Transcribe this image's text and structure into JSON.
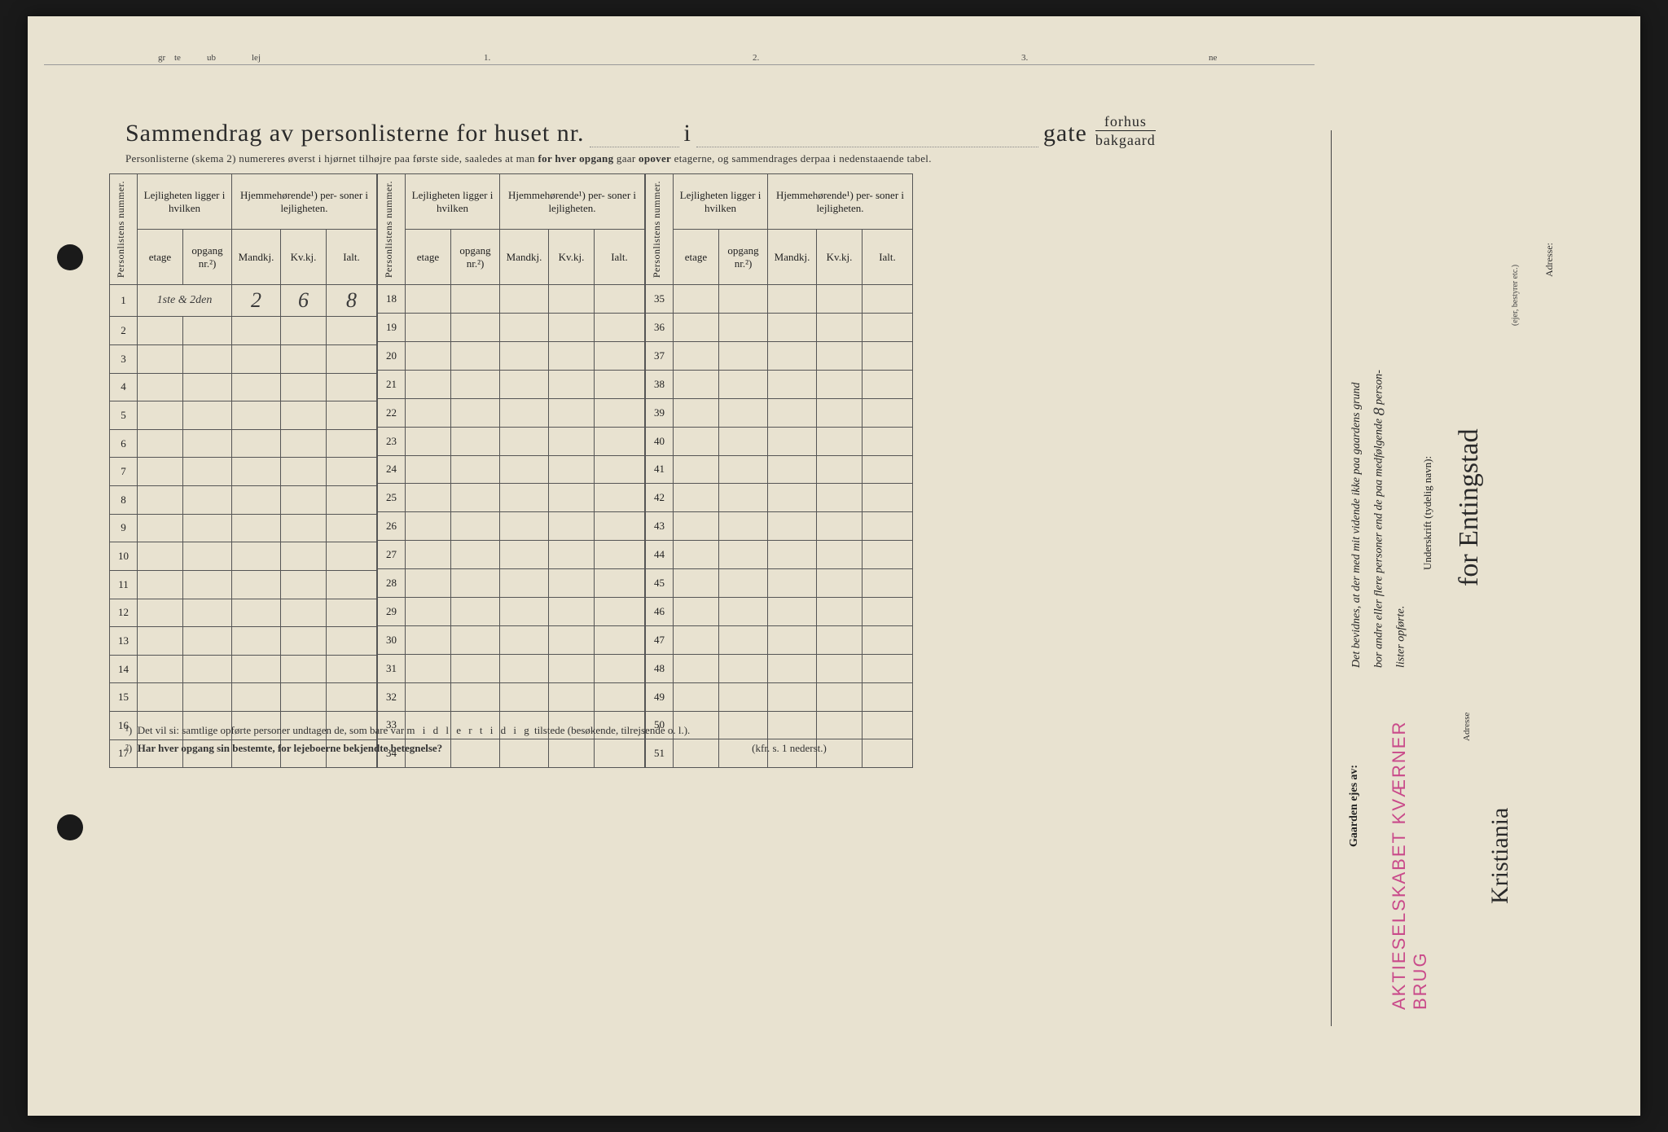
{
  "page": {
    "background_color": "#e8e2d0",
    "ink_color": "#2a2a2a",
    "stamp_color": "#c94a8a",
    "border_color": "#555555"
  },
  "top_fragment": {
    "labels": [
      "gr",
      "te",
      "ub",
      "lej",
      "1.",
      "2.",
      "3.",
      "ne"
    ]
  },
  "header": {
    "title_pre": "Sammendrag av personlisterne for huset nr.",
    "title_i": "i",
    "title_gate": "gate",
    "fraction_top": "forhus",
    "fraction_bottom": "bakgaard",
    "subtitle": "Personlisterne (skema 2) numereres øverst i hjørnet tilhøjre paa første side, saaledes at man for hver opgang gaar opover etagerne, og sammendrages derpaa i nedenstaaende tabel.",
    "subtitle_bold_1": "for hver opgang",
    "subtitle_bold_2": "opover"
  },
  "table": {
    "col_personlistens": "Personlistens\nnummer.",
    "group_lejlighet": "Lejligheten\nligger i hvilken",
    "group_hjemme": "Hjemmehørende¹) per-\nsoner i lejligheten.",
    "col_etage": "etage",
    "col_opgang": "opgang\nnr.²)",
    "col_mandkj": "Mandkj.",
    "col_kvkj": "Kv.kj.",
    "col_ialt": "Ialt.",
    "block1_start": 1,
    "block1_end": 17,
    "block2_start": 18,
    "block2_end": 34,
    "block3_start": 35,
    "block3_end": 51,
    "row1": {
      "num": "1",
      "etage": "1ste & 2den",
      "opgang": "",
      "mandkj": "2",
      "kvkj": "6",
      "ialt": "8"
    }
  },
  "footnotes": {
    "n1": "¹)  Det vil si: samtlige opførte personer undtagen de, som bare var midlertidig tilstede (besøkende, tilrejsende o. l.).",
    "n1_spaced": "m i d l e r t i d i g",
    "n2": "²)  Har hver opgang sin bestemte, for lejeboerne bekjendte betegnelse?",
    "kfr": "(kfr. s. 1 nederst.)"
  },
  "attestation": {
    "text_lines": "Det bevidnes, at der med mit vidende ikke paa gaardens grund bor andre eller flere personer end de paa medfølgende 8 person- lister opførte.",
    "count_handwritten": "8",
    "underskrift_label": "Underskrift (tydelig navn):",
    "signature": "for Entingstad",
    "role_hint": "(ejer, bestyrer etc.)",
    "adresse_label": "Adresse:"
  },
  "owner": {
    "label": "Gaarden ejes av:",
    "stamp": "AKTIESELSKABET KVÆRNER BRUG",
    "adresse_label": "Adresse",
    "adresse_value": "Kristiania"
  }
}
